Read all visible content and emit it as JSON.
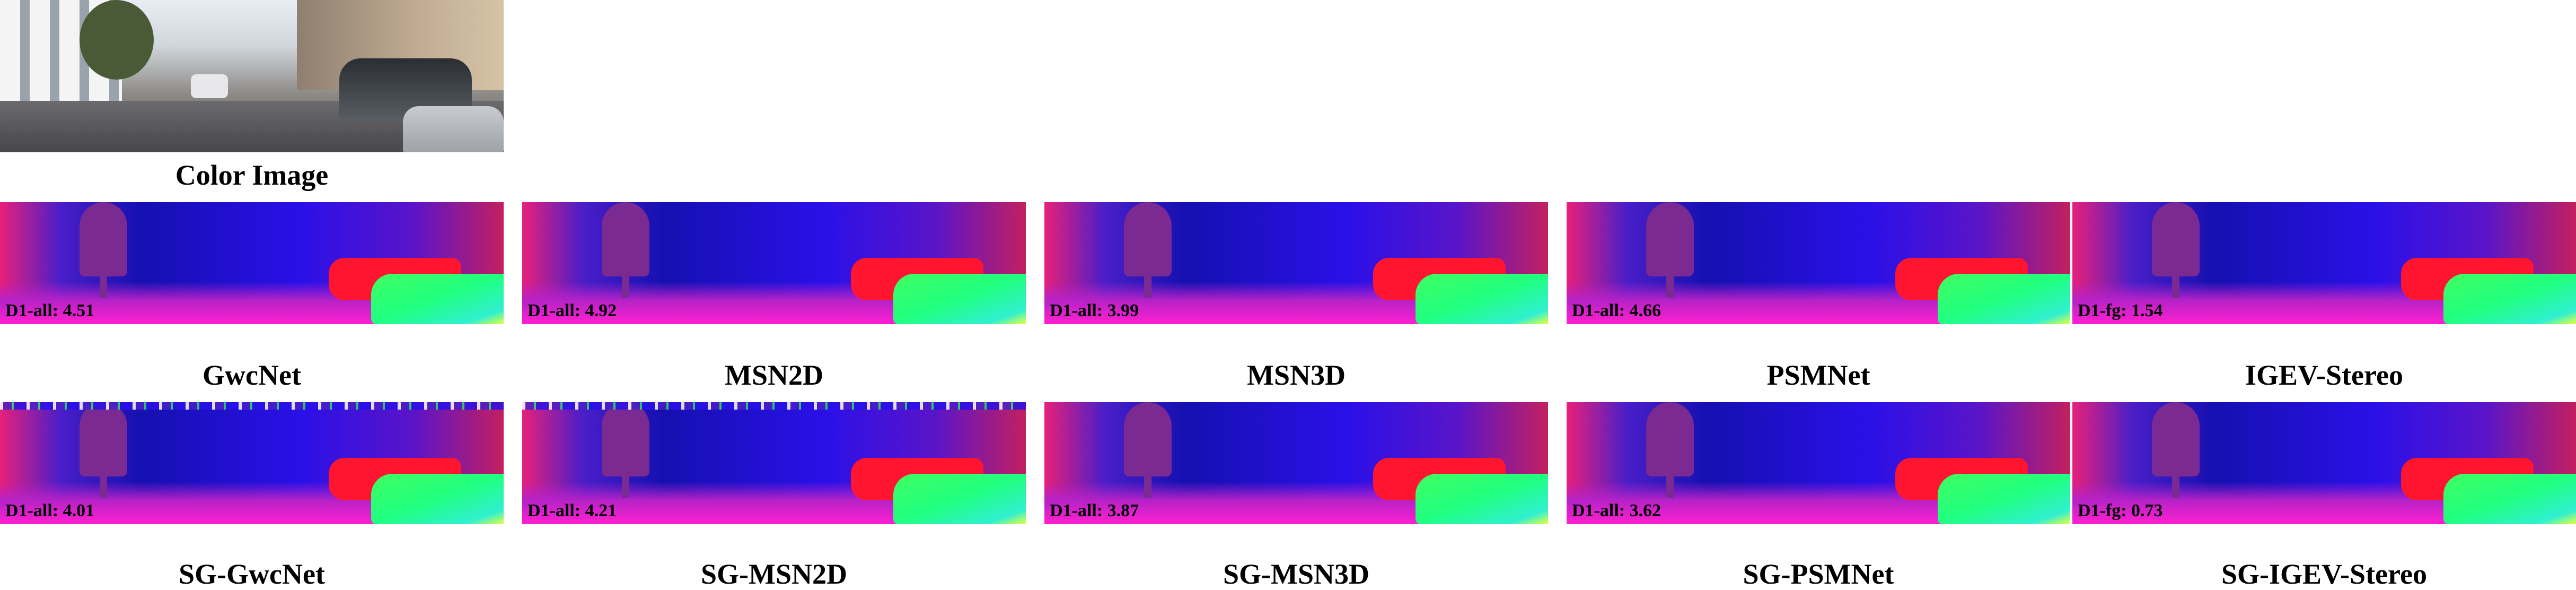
{
  "color_image": {
    "caption": "Color Image"
  },
  "rows": [
    [
      {
        "method": "GwcNet",
        "metric": "D1-all: 4.51"
      },
      {
        "method": "MSN2D",
        "metric": "D1-all: 4.92"
      },
      {
        "method": "MSN3D",
        "metric": "D1-all: 3.99"
      },
      {
        "method": "PSMNet",
        "metric": "D1-all: 4.66"
      },
      {
        "method": "IGEV-Stereo",
        "metric": "D1-fg: 1.54"
      }
    ],
    [
      {
        "method": "SG-GwcNet",
        "metric": "D1-all: 4.01"
      },
      {
        "method": "SG-MSN2D",
        "metric": "D1-all: 4.21"
      },
      {
        "method": "SG-MSN3D",
        "metric": "D1-all: 3.87"
      },
      {
        "method": "SG-PSMNet",
        "metric": "D1-all: 3.62"
      },
      {
        "method": "SG-IGEV-Stereo",
        "metric": "D1-fg: 0.73"
      }
    ]
  ]
}
